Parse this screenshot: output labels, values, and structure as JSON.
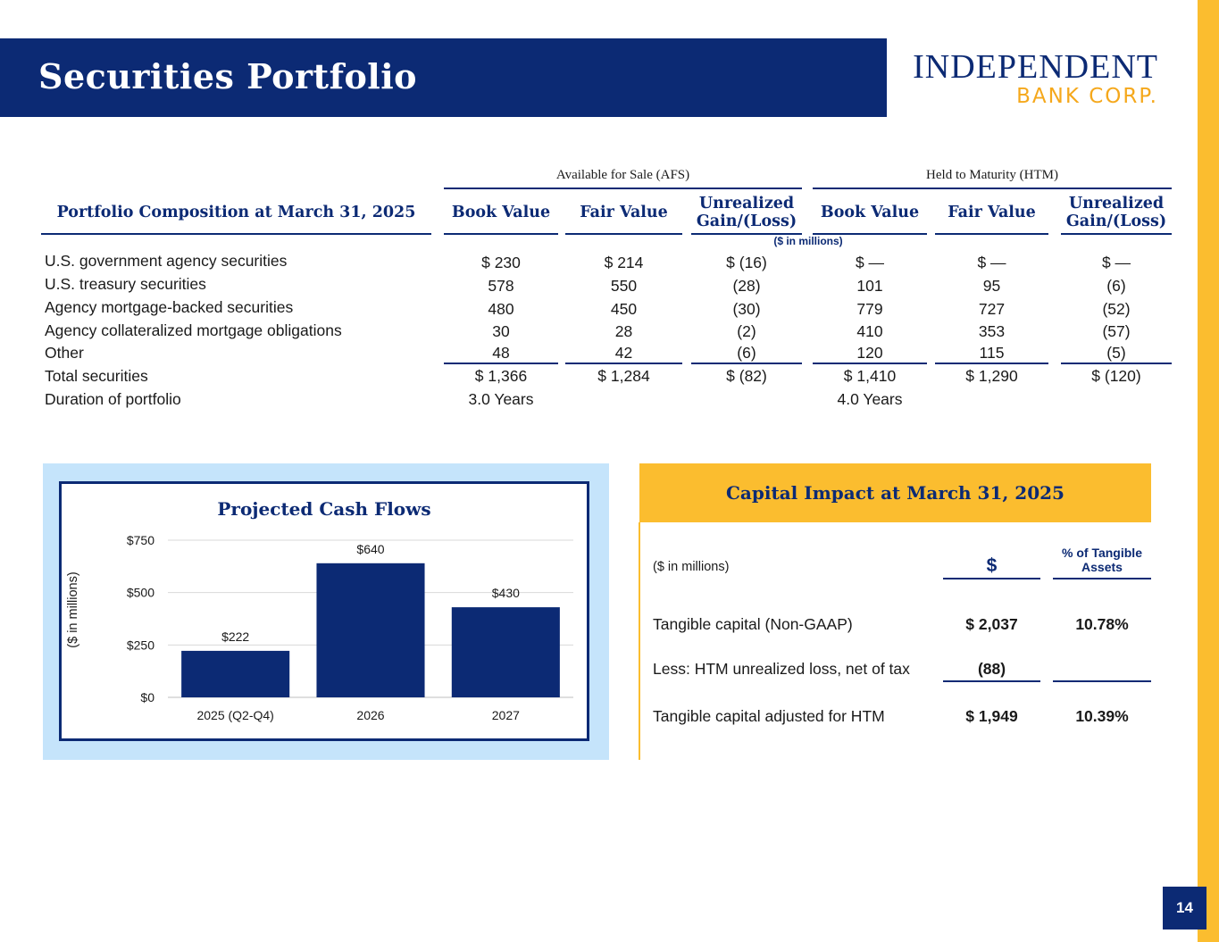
{
  "title": "Securities Portfolio",
  "logo": {
    "line1": "INDEPENDENT",
    "line2": "BANK CORP."
  },
  "page_number": "14",
  "portfolio": {
    "group_afs": "Available for Sale (AFS)",
    "group_htm": "Held to Maturity (HTM)",
    "title": "Portfolio Composition at March 31, 2025",
    "col_book": "Book Value",
    "col_fair": "Fair Value",
    "col_unreal_1": "Unrealized",
    "col_unreal_2": "Gain/(Loss)",
    "units": "($ in millions)",
    "rows": [
      {
        "label": "U.S. government agency securities",
        "afs_book": "$ 230",
        "afs_fair": "$ 214",
        "afs_unreal": "$ (16)",
        "htm_book": "$ —",
        "htm_fair": "$ —",
        "htm_unreal": "$ —"
      },
      {
        "label": "U.S. treasury securities",
        "afs_book": "578",
        "afs_fair": "550",
        "afs_unreal": "(28)",
        "htm_book": "101",
        "htm_fair": "95",
        "htm_unreal": "(6)"
      },
      {
        "label": "Agency mortgage-backed securities",
        "afs_book": "480",
        "afs_fair": "450",
        "afs_unreal": "(30)",
        "htm_book": "779",
        "htm_fair": "727",
        "htm_unreal": "(52)"
      },
      {
        "label": "Agency collateralized mortgage obligations",
        "afs_book": "30",
        "afs_fair": "28",
        "afs_unreal": "(2)",
        "htm_book": "410",
        "htm_fair": "353",
        "htm_unreal": "(57)"
      },
      {
        "label": "Other",
        "afs_book": "48",
        "afs_fair": "42",
        "afs_unreal": "(6)",
        "htm_book": "120",
        "htm_fair": "115",
        "htm_unreal": "(5)"
      },
      {
        "label": "Total securities",
        "afs_book": "$ 1,366",
        "afs_fair": "$ 1,284",
        "afs_unreal": "$ (82)",
        "htm_book": "$ 1,410",
        "htm_fair": "$ 1,290",
        "htm_unreal": "$ (120)"
      },
      {
        "label": "Duration of portfolio",
        "afs_book": "3.0 Years",
        "afs_fair": "",
        "afs_unreal": "",
        "htm_book": "4.0 Years",
        "htm_fair": "",
        "htm_unreal": ""
      }
    ]
  },
  "chart_data": {
    "type": "bar",
    "title": "Projected Cash Flows",
    "ylabel": "($ in millions)",
    "categories": [
      "2025 (Q2-Q4)",
      "2026",
      "2027"
    ],
    "values": [
      222,
      640,
      430
    ],
    "data_labels": [
      "$222",
      "$640",
      "$430"
    ],
    "ylim": [
      0,
      750
    ],
    "yticks": [
      0,
      250,
      500,
      750
    ],
    "ytick_labels": [
      "$0",
      "$250",
      "$500",
      "$750"
    ],
    "grid": true,
    "bar_color": "#0c2a74"
  },
  "capital": {
    "title": "Capital Impact at March 31, 2025",
    "units": "($ in millions)",
    "col_dollar": "$",
    "col_pct_1": "% of Tangible",
    "col_pct_2": "Assets",
    "rows": [
      {
        "label": "Tangible capital (Non-GAAP)",
        "value": "$ 2,037",
        "pct": "10.78%"
      },
      {
        "label": "Less: HTM unrealized loss, net of tax",
        "value": "(88)",
        "pct": ""
      },
      {
        "label": "Tangible capital adjusted for HTM",
        "value": "$ 1,949",
        "pct": "10.39%"
      }
    ]
  },
  "colors": {
    "navy": "#0c2a74",
    "gold": "#fbbd2f",
    "light_blue": "#c5e4fb"
  }
}
